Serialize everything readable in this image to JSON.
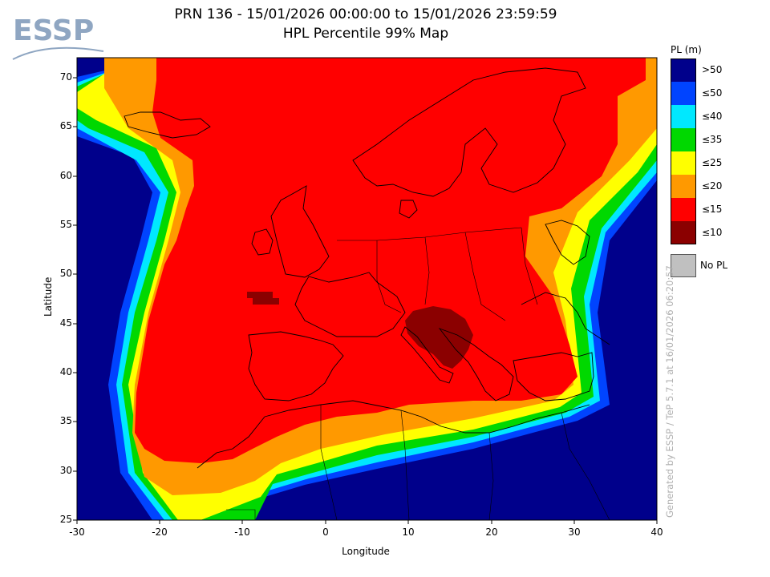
{
  "logo": {
    "text": "ESSP"
  },
  "title": {
    "line1": "PRN 136 - 15/01/2026 00:00:00 to 15/01/2026 23:59:59",
    "line2": "HPL Percentile 99% Map"
  },
  "axes": {
    "xlabel": "Longitude",
    "ylabel": "Latitude",
    "x_ticks": [
      "-30",
      "-20",
      "-10",
      "0",
      "10",
      "20",
      "30",
      "40"
    ],
    "y_ticks": [
      "70",
      "65",
      "60",
      "55",
      "50",
      "45",
      "40",
      "35",
      "30",
      "25"
    ],
    "xlim": [
      -30,
      40
    ],
    "ylim": [
      25,
      72
    ]
  },
  "legend": {
    "title": "PL (m)",
    "items": [
      {
        "label": ">50",
        "color": "#00008b"
      },
      {
        "label": "≤50",
        "color": "#0044ff"
      },
      {
        "label": "≤40",
        "color": "#00e8ff"
      },
      {
        "label": "≤35",
        "color": "#00d800"
      },
      {
        "label": "≤25",
        "color": "#ffff00"
      },
      {
        "label": "≤20",
        "color": "#ff9900"
      },
      {
        "label": "≤15",
        "color": "#ff0000"
      },
      {
        "label": "≤10",
        "color": "#8b0000"
      }
    ],
    "no_pl": {
      "label": "No PL",
      "color": "#c0c0c0"
    }
  },
  "watermark": "Generated by ESSP / TeP 5.7.1 at 16/01/2026 06:20:57",
  "chart_data": {
    "type": "heatmap",
    "xlabel": "Longitude",
    "ylabel": "Latitude",
    "xlim": [
      -30,
      40
    ],
    "ylim": [
      25,
      72
    ],
    "title": "PRN 136 - 15/01/2026 00:00:00 to 15/01/2026 23:59:59",
    "subtitle": "HPL Percentile 99% Map",
    "regions": [
      {
        "class": ">50",
        "description": "Atlantic west and south, North Africa south, far east"
      },
      {
        "class": "≤15",
        "description": "Central region: Europe, North Atlantic, Mediterranean"
      },
      {
        "class": "≤10",
        "description": "Small patch at lon -9 to -6, lat 47; and Adriatic/Balkans lon 10 to 17, lat 40 to 47"
      }
    ]
  }
}
